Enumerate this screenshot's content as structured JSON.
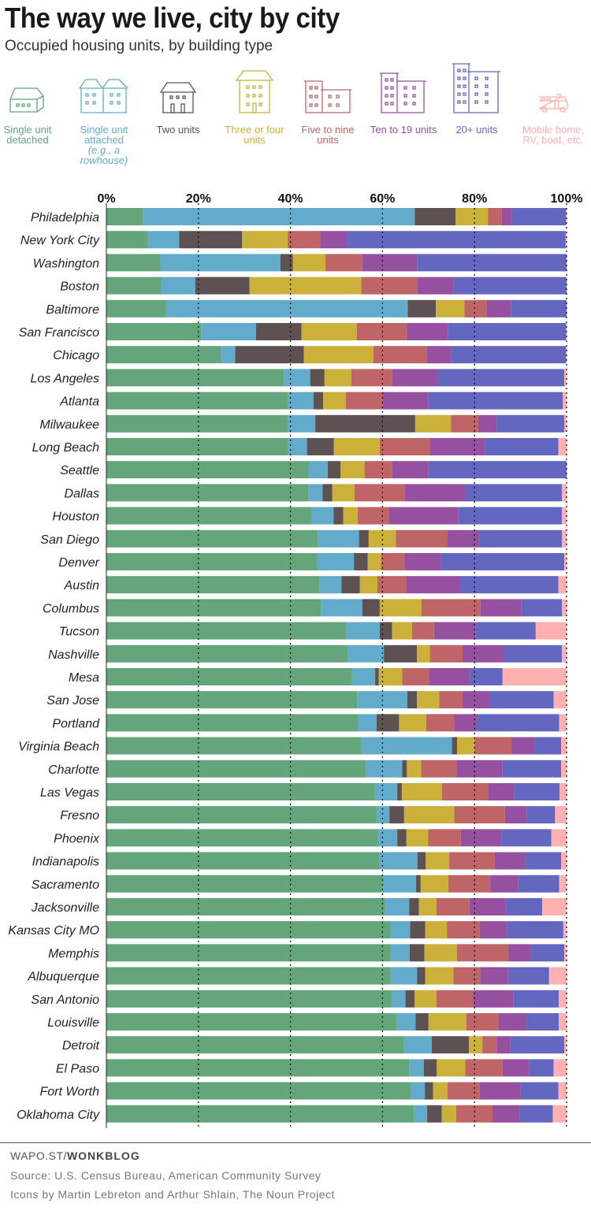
{
  "header": {
    "title": "The way we live, city by city",
    "subtitle": "Occupied housing units, by building type"
  },
  "legend": [
    {
      "label": "Single unit detached",
      "note": "",
      "color": "#64a57b",
      "icon": "detached-house-icon"
    },
    {
      "label": "Single unit attached",
      "note": "(e.g., a rowhouse)",
      "color": "#63abcb",
      "icon": "rowhouse-icon"
    },
    {
      "label": "Two units",
      "note": "",
      "color": "#5e5151",
      "icon": "two-unit-house-icon"
    },
    {
      "label": "Three or four units",
      "note": "",
      "color": "#cbb13a",
      "icon": "small-apartment-icon"
    },
    {
      "label": "Five to nine units",
      "note": "",
      "color": "#bf6567",
      "icon": "low-rise-building-icon"
    },
    {
      "label": "Ten to 19 units",
      "note": "",
      "color": "#9551a0",
      "icon": "mid-rise-building-icon"
    },
    {
      "label": "20+ units",
      "note": "",
      "color": "#6367c0",
      "icon": "high-rise-building-icon"
    },
    {
      "label": "Mobile home, RV, boat, etc.",
      "note": "",
      "color": "#ffb0b0",
      "icon": "rv-icon"
    }
  ],
  "chart_data": {
    "type": "bar",
    "orientation": "horizontal",
    "stacked": true,
    "title": "The way we live, city by city",
    "subtitle": "Occupied housing units, by building type",
    "xlim": [
      0,
      100
    ],
    "x_ticks": [
      "0%",
      "20%",
      "40%",
      "60%",
      "80%",
      "100%"
    ],
    "grid": "dotted vertical at 20/40/60/80/100",
    "categories": [
      "Philadelphia",
      "New York City",
      "Washington",
      "Boston",
      "Baltimore",
      "San Francisco",
      "Chicago",
      "Los Angeles",
      "Atlanta",
      "Milwaukee",
      "Long Beach",
      "Seattle",
      "Dallas",
      "Houston",
      "San Diego",
      "Denver",
      "Austin",
      "Columbus",
      "Tucson",
      "Nashville",
      "Mesa",
      "San Jose",
      "Portland",
      "Virginia Beach",
      "Charlotte",
      "Las Vegas",
      "Fresno",
      "Phoenix",
      "Indianapolis",
      "Sacramento",
      "Jacksonville",
      "Kansas City MO",
      "Memphis",
      "Albuquerque",
      "San Antonio",
      "Louisville",
      "Detroit",
      "El Paso",
      "Fort Worth",
      "Oklahoma City"
    ],
    "series": [
      {
        "name": "Single unit detached",
        "values": [
          7.9,
          9.0,
          11.8,
          11.9,
          13.0,
          20.6,
          24.9,
          38.6,
          39.4,
          39.3,
          39.5,
          44.0,
          43.9,
          44.6,
          45.9,
          45.8,
          46.3,
          46.6,
          52.2,
          52.5,
          53.4,
          54.5,
          54.7,
          55.4,
          56.4,
          58.3,
          58.8,
          59.0,
          59.4,
          60.1,
          60.6,
          61.8,
          61.8,
          61.8,
          61.9,
          63.0,
          64.7,
          65.8,
          66.1,
          66.9
        ]
      },
      {
        "name": "Single unit attached",
        "values": [
          59.1,
          6.8,
          26.0,
          7.4,
          52.5,
          11.9,
          3.1,
          5.7,
          5.6,
          6.1,
          4.1,
          4.1,
          3.1,
          4.8,
          9.0,
          8.0,
          4.8,
          9.0,
          7.2,
          7.8,
          5.0,
          10.9,
          4.0,
          19.7,
          7.9,
          4.9,
          2.7,
          4.2,
          8.2,
          7.2,
          5.2,
          4.2,
          4.1,
          5.7,
          3.1,
          4.2,
          6.0,
          3.2,
          3.1,
          2.8
        ]
      },
      {
        "name": "Two units",
        "values": [
          8.9,
          13.7,
          2.7,
          11.8,
          6.1,
          9.9,
          14.9,
          3.1,
          2.1,
          21.7,
          5.8,
          2.8,
          2.1,
          2.1,
          2.1,
          3.0,
          4.0,
          3.8,
          2.7,
          7.2,
          0.8,
          2.1,
          4.9,
          1.1,
          1.0,
          1.0,
          3.2,
          2.0,
          1.8,
          1.0,
          2.1,
          3.3,
          3.2,
          1.8,
          2.0,
          2.8,
          8.1,
          2.8,
          1.8,
          3.2
        ]
      },
      {
        "name": "Three or four units",
        "values": [
          7.0,
          9.9,
          7.1,
          24.3,
          6.2,
          12.0,
          15.1,
          5.8,
          4.9,
          7.8,
          10.0,
          5.2,
          4.8,
          3.1,
          5.9,
          2.9,
          3.8,
          9.1,
          4.3,
          2.8,
          5.1,
          4.8,
          5.9,
          3.8,
          3.1,
          8.7,
          10.9,
          4.7,
          5.1,
          6.0,
          3.8,
          4.7,
          7.1,
          6.1,
          4.7,
          8.2,
          2.9,
          6.2,
          3.1,
          3.1
        ]
      },
      {
        "name": "Five to nine units",
        "values": [
          3.0,
          7.1,
          8.0,
          12.1,
          4.9,
          10.9,
          11.7,
          8.9,
          8.0,
          5.9,
          10.9,
          6.0,
          11.0,
          6.8,
          11.1,
          5.1,
          6.2,
          12.8,
          4.8,
          7.1,
          5.8,
          5.1,
          6.1,
          8.1,
          7.8,
          10.0,
          11.0,
          7.1,
          9.8,
          9.1,
          7.2,
          7.1,
          11.1,
          5.8,
          8.0,
          7.0,
          3.1,
          8.1,
          7.0,
          7.9
        ]
      },
      {
        "name": "Ten to 19 units",
        "values": [
          2.1,
          5.8,
          11.9,
          8.0,
          5.2,
          8.9,
          5.2,
          9.9,
          10.0,
          4.0,
          12.0,
          7.9,
          13.1,
          15.0,
          6.9,
          7.9,
          11.7,
          8.8,
          9.0,
          8.9,
          8.9,
          5.9,
          4.8,
          4.8,
          9.9,
          5.7,
          4.7,
          8.8,
          6.7,
          6.1,
          7.9,
          6.0,
          5.0,
          6.1,
          8.7,
          5.9,
          3.0,
          5.8,
          8.9,
          5.9
        ]
      },
      {
        "name": "20+ units",
        "values": [
          11.9,
          47.5,
          32.5,
          24.5,
          12.1,
          25.7,
          25.0,
          27.5,
          29.2,
          14.7,
          15.9,
          30.0,
          21.0,
          22.6,
          18.1,
          26.8,
          21.4,
          8.9,
          13.1,
          12.7,
          7.1,
          13.9,
          18.0,
          5.9,
          12.7,
          9.9,
          6.2,
          10.9,
          7.8,
          8.9,
          7.9,
          12.2,
          7.2,
          8.9,
          9.9,
          7.2,
          11.7,
          5.3,
          8.2,
          7.2
        ]
      },
      {
        "name": "Mobile home, RV, boat, etc.",
        "values": [
          0.1,
          0.2,
          0.0,
          0.0,
          0.0,
          0.1,
          0.1,
          0.5,
          0.8,
          0.5,
          1.8,
          0.0,
          1.0,
          1.0,
          1.0,
          0.5,
          1.8,
          1.0,
          6.7,
          1.0,
          13.9,
          2.8,
          1.6,
          1.2,
          1.2,
          1.5,
          2.5,
          3.3,
          1.2,
          1.6,
          5.3,
          0.7,
          0.5,
          3.8,
          1.7,
          1.7,
          0.5,
          2.8,
          1.8,
          3.0
        ]
      }
    ]
  },
  "footer": {
    "site_prefix": "WAPO.ST/",
    "site_suffix": "WONKBLOG",
    "source": "Source: U.S. Census Bureau, American Community Survey",
    "credits": "Icons by Martin Lebreton and Arthur Shlain, The Noun Project"
  }
}
